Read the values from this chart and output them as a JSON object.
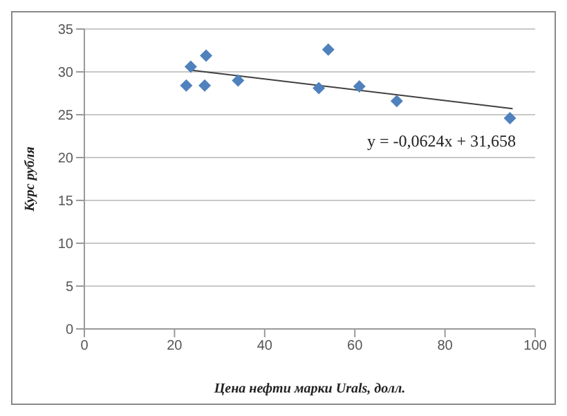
{
  "chart_data": {
    "type": "scatter",
    "xlabel": "Цена нефти марки Urals, долл.",
    "ylabel": "Курс рубля",
    "annotations": [
      "y = -0,0624x + 31,658"
    ],
    "xlim": [
      0,
      100
    ],
    "xticks": [
      0,
      20,
      40,
      60,
      80,
      100
    ],
    "ylim": [
      0,
      35
    ],
    "yticks": [
      0,
      5,
      10,
      15,
      20,
      25,
      30,
      35
    ],
    "grid": "y",
    "marker": "diamond",
    "legend": false,
    "series": [
      {
        "color": "#4f81bd",
        "x": [
          22.6,
          23.6,
          27.0,
          26.7,
          34.1,
          52.0,
          54.1,
          61.0,
          69.3,
          94.4
        ],
        "values": [
          28.4,
          30.6,
          31.9,
          28.4,
          29.0,
          28.1,
          32.6,
          28.3,
          26.6,
          24.6
        ]
      },
      {
        "type": "line",
        "color": "#404040",
        "x": [
          23.6,
          95
        ],
        "values": [
          30.2,
          25.7
        ],
        "marker": "none",
        "line_style": "solid"
      }
    ]
  }
}
